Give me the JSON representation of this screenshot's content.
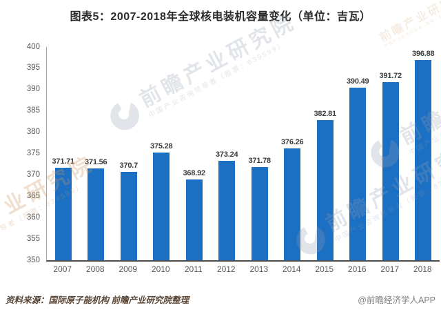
{
  "title": "图表5：2007-2018年全球核电装机容量变化（单位：吉瓦）",
  "chart_data": {
    "type": "bar",
    "title": "图表5：2007-2018年全球核电装机容量变化（单位：吉瓦）",
    "unit": "吉瓦",
    "categories": [
      "2007",
      "2008",
      "2009",
      "2010",
      "2011",
      "2012",
      "2013",
      "2014",
      "2015",
      "2016",
      "2017",
      "2018"
    ],
    "values": [
      371.71,
      371.56,
      370.7,
      375.28,
      368.92,
      373.24,
      371.78,
      376.26,
      382.81,
      390.49,
      391.72,
      396.88
    ],
    "xlabel": "",
    "ylabel": "",
    "ylim": [
      350,
      400
    ],
    "yticks": [
      350,
      355,
      360,
      365,
      370,
      375,
      380,
      385,
      390,
      395,
      400
    ],
    "grid": false,
    "legend_position": "none",
    "bar_color": "#1b70c4"
  },
  "footer": {
    "source": "资料来源：国际原子能机构 前瞻产业研究院整理",
    "credit": "@前瞻经济学人APP"
  },
  "watermark": {
    "main": "前瞻产业研究院",
    "sub": "中国产业咨询领导者（股票：839599）"
  },
  "colors": {
    "bar": "#1b70c4",
    "title_text": "#2b2b2b",
    "axis_text": "#595959",
    "value_label_text": "#3d3d3d",
    "source_text": "#5a4636",
    "credit_text": "#808080",
    "axis_line": "#9aa0a6",
    "baseline": "#4d4d4d"
  }
}
